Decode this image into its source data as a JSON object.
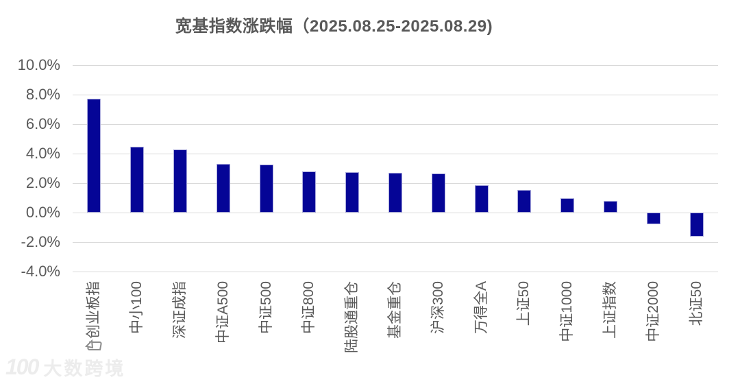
{
  "page": {
    "background": "#ffffff"
  },
  "chart_data": {
    "type": "bar",
    "title": "宽基指数涨跌幅（2025.08.25-2025.08.29)",
    "categories": [
      "创业板指",
      "中小100",
      "深证成指",
      "中证A500",
      "中证500",
      "中证800",
      "陆股通重仓",
      "基金重仓",
      "沪深300",
      "万得全A",
      "上证50",
      "中证1000",
      "上证指数",
      "中证2000",
      "北证50"
    ],
    "values": [
      7.7,
      4.45,
      4.3,
      3.3,
      3.25,
      2.8,
      2.75,
      2.7,
      2.65,
      1.85,
      1.55,
      1.0,
      0.8,
      -0.8,
      -1.65
    ],
    "xlabel": "",
    "ylabel": "",
    "ylim": [
      -4,
      10
    ],
    "ytick_step": 2,
    "ytick_suffix": "%",
    "grid": true,
    "legend_position": "none",
    "bar_color": "#050596",
    "grid_color": "#d9d9d9",
    "axis_label_color": "#595959",
    "title_color": "#595959"
  },
  "watermark": {
    "logo_text": "100",
    "text": "大数跨境",
    "icon": "forward-arrow-icon"
  }
}
